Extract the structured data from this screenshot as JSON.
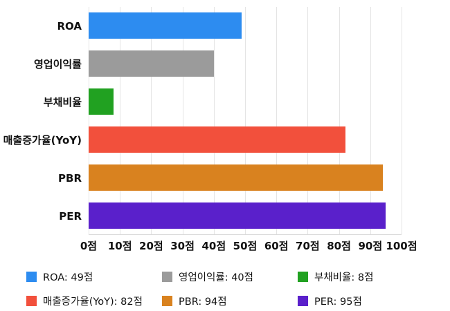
{
  "chart_data": {
    "type": "bar",
    "orientation": "horizontal",
    "categories": [
      "ROA",
      "영업이익률",
      "부채비율",
      "매출증가율(YoY)",
      "PBR",
      "PER"
    ],
    "values": [
      49,
      40,
      8,
      82,
      94,
      95
    ],
    "colors": [
      "#2d8cf0",
      "#9b9b9b",
      "#21a121",
      "#f2503c",
      "#d9821f",
      "#5a20cb"
    ],
    "xlim": [
      0,
      100
    ],
    "xticks": [
      0,
      10,
      20,
      30,
      40,
      50,
      60,
      70,
      80,
      90,
      100
    ],
    "tick_suffix": "점",
    "value_suffix": "점",
    "grid": true,
    "legend_position": "bottom",
    "legend": [
      "ROA: 49점",
      "영업이익률: 40점",
      "부채비율: 8점",
      "매출증가율(YoY): 82점",
      "PBR: 94점",
      "PER: 95점"
    ]
  }
}
